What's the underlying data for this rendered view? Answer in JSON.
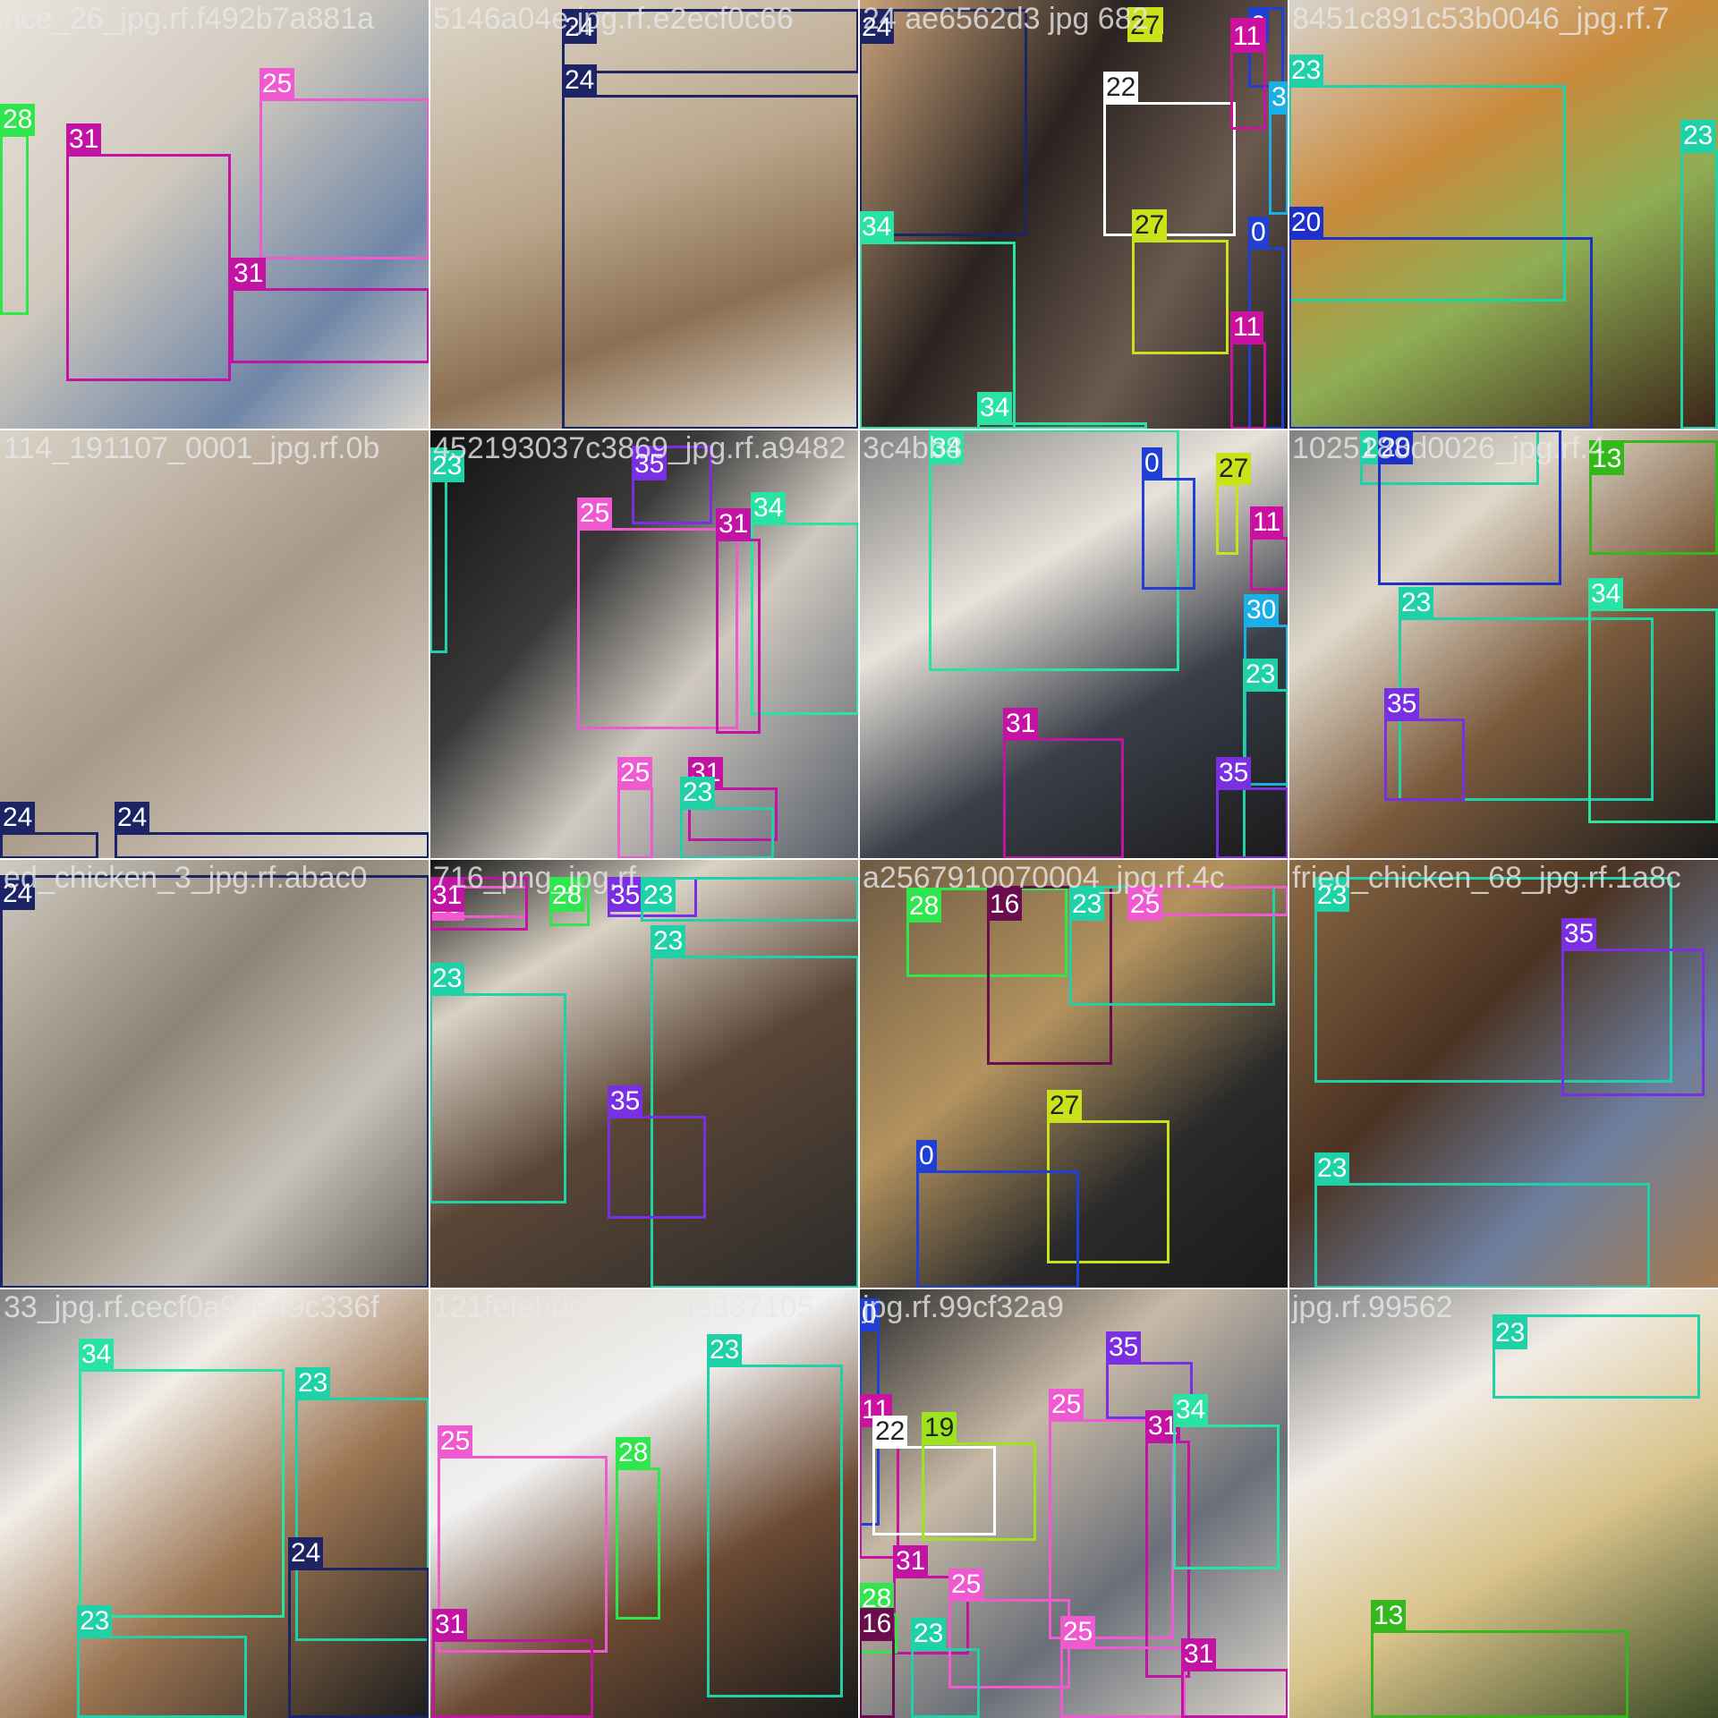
{
  "colors": {
    "0": "#1f3fd6",
    "11": "#cc10a0",
    "13": "#35b81c",
    "16": "#6a0c4e",
    "19": "#9ee41e",
    "20": "#1d30c8",
    "22": "#ffffff",
    "23": "#1fd1a6",
    "24": "#1c2466",
    "25": "#f05ad0",
    "27": "#c9e21a",
    "28": "#2fe64c",
    "30": "#1ab0e6",
    "31": "#c313a3",
    "34": "#29e3a4",
    "35": "#7a2fe3"
  },
  "tiles": [
    {
      "filename": "rice_26_jpg.rf.f492b7a881a",
      "boxes": [
        {
          "cls": "28"
        },
        {
          "cls": "31"
        },
        {
          "cls": "25"
        },
        {
          "cls": "31"
        },
        {
          "cls": "31"
        }
      ]
    },
    {
      "filename": "5146a04e.jpg.rf.e2ecf0c66",
      "boxes": [
        {
          "cls": "24"
        },
        {
          "cls": "24"
        }
      ]
    },
    {
      "filename": "24 ae6562d3 jpg 682",
      "boxes": [
        {
          "cls": "24"
        },
        {
          "cls": "34"
        },
        {
          "cls": "27"
        },
        {
          "cls": "22"
        },
        {
          "cls": "27"
        },
        {
          "cls": "0"
        },
        {
          "cls": "11"
        },
        {
          "cls": "30"
        },
        {
          "cls": "0"
        },
        {
          "cls": "11"
        },
        {
          "cls": "34"
        }
      ]
    },
    {
      "filename": "8451c891c53b0046_jpg.rf.7",
      "boxes": [
        {
          "cls": "23"
        },
        {
          "cls": "20"
        },
        {
          "cls": "23"
        }
      ]
    },
    {
      "filename": "114_191107_0001_jpg.rf.0b",
      "boxes": [
        {
          "cls": "24"
        },
        {
          "cls": "24"
        }
      ]
    },
    {
      "filename": "452193037c3869_jpg.rf.a9482",
      "boxes": [
        {
          "cls": "23"
        },
        {
          "cls": "35"
        },
        {
          "cls": "25"
        },
        {
          "cls": "34"
        },
        {
          "cls": "31"
        },
        {
          "cls": "25"
        },
        {
          "cls": "31"
        },
        {
          "cls": "23"
        }
      ]
    },
    {
      "filename": "3c4bb8",
      "boxes": [
        {
          "cls": "34"
        },
        {
          "cls": "0"
        },
        {
          "cls": "27"
        },
        {
          "cls": "11"
        },
        {
          "cls": "30"
        },
        {
          "cls": "23"
        },
        {
          "cls": "31"
        },
        {
          "cls": "35"
        }
      ]
    },
    {
      "filename": "1025188d0026_jpg.rf.4",
      "boxes": [
        {
          "cls": "23"
        },
        {
          "cls": "20"
        },
        {
          "cls": "13"
        },
        {
          "cls": "23"
        },
        {
          "cls": "34"
        },
        {
          "cls": "35"
        }
      ]
    },
    {
      "filename": "ed_chicken_3_jpg.rf.abac0",
      "boxes": [
        {
          "cls": "24"
        }
      ]
    },
    {
      "filename": "716_png_jpg.rf",
      "boxes": [
        {
          "cls": "25"
        },
        {
          "cls": "31"
        },
        {
          "cls": "28"
        },
        {
          "cls": "35"
        },
        {
          "cls": "23"
        },
        {
          "cls": "23"
        },
        {
          "cls": "23"
        },
        {
          "cls": "35"
        }
      ]
    },
    {
      "filename": "a2567910070004_jpg.rf.4c",
      "boxes": [
        {
          "cls": "28"
        },
        {
          "cls": "16"
        },
        {
          "cls": "23"
        },
        {
          "cls": "25"
        },
        {
          "cls": "27"
        },
        {
          "cls": "0"
        }
      ]
    },
    {
      "filename": "fried_chicken_68_jpg.rf.1a8c",
      "boxes": [
        {
          "cls": "23"
        },
        {
          "cls": "35"
        },
        {
          "cls": "23"
        }
      ]
    },
    {
      "filename": "33_jpg.rf.cecf0a90e49c336f",
      "boxes": [
        {
          "cls": "34"
        },
        {
          "cls": "23"
        },
        {
          "cls": "23"
        },
        {
          "cls": "24"
        }
      ]
    },
    {
      "filename": "121fefebdd179860fe837105",
      "boxes": [
        {
          "cls": "25"
        },
        {
          "cls": "28"
        },
        {
          "cls": "31"
        },
        {
          "cls": "23"
        }
      ]
    },
    {
      "filename": "jpg.rf.99cf32a9",
      "boxes": [
        {
          "cls": "0"
        },
        {
          "cls": "11"
        },
        {
          "cls": "22"
        },
        {
          "cls": "19"
        },
        {
          "cls": "35"
        },
        {
          "cls": "25"
        },
        {
          "cls": "31"
        },
        {
          "cls": "34"
        },
        {
          "cls": "31"
        },
        {
          "cls": "25"
        },
        {
          "cls": "28"
        },
        {
          "cls": "23"
        },
        {
          "cls": "16"
        },
        {
          "cls": "25"
        },
        {
          "cls": "31"
        }
      ]
    },
    {
      "filename": "jpg.rf.99562",
      "boxes": [
        {
          "cls": "23"
        },
        {
          "cls": "13"
        }
      ]
    }
  ]
}
